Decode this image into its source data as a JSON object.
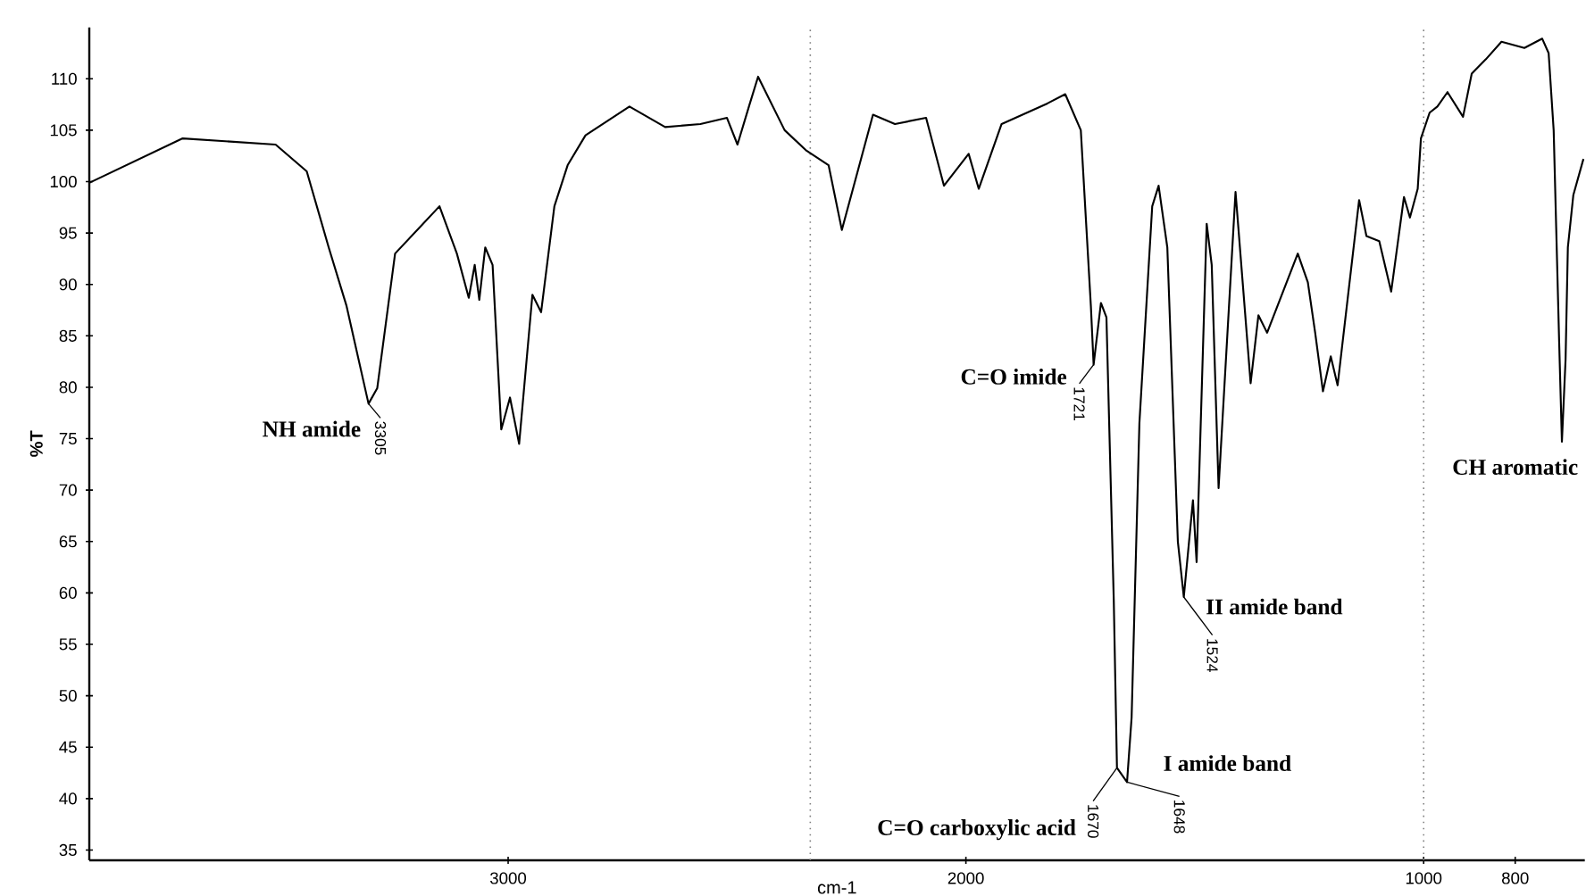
{
  "chart_data": {
    "type": "line",
    "xlabel": "cm-1",
    "ylabel": "%T",
    "color": "#000000",
    "x": [
      3914,
      3711,
      3508,
      3440,
      3392,
      3353,
      3305,
      3286,
      3247,
      3150,
      3112,
      3086,
      3073,
      3063,
      3050,
      3034,
      3015,
      2996,
      2976,
      2947,
      2928,
      2899,
      2870,
      2831,
      2735,
      2657,
      2580,
      2522,
      2499,
      2474,
      2454,
      2396,
      2348,
      2300,
      2271,
      2203,
      2155,
      2087,
      2048,
      1994,
      1972,
      1922,
      1822,
      1783,
      1749,
      1727,
      1721,
      1705,
      1693,
      1677,
      1670,
      1648,
      1638,
      1621,
      1593,
      1579,
      1560,
      1537,
      1524,
      1504,
      1496,
      1474,
      1463,
      1448,
      1411,
      1378,
      1361,
      1342,
      1275,
      1253,
      1237,
      1220,
      1203,
      1188,
      1141,
      1125,
      1097,
      1071,
      1043,
      1030,
      1013,
      1006,
      987,
      970,
      948,
      914,
      895,
      864,
      830,
      780,
      741,
      727,
      716,
      704,
      698,
      690,
      685,
      673,
      651
    ],
    "values": [
      99.9,
      104.2,
      103.6,
      101,
      93.6,
      87.9,
      78.4,
      79.9,
      93.0,
      97.6,
      93.0,
      88.7,
      91.9,
      88.5,
      93.6,
      91.9,
      75.9,
      79.0,
      74.5,
      89.0,
      87.3,
      97.6,
      101.6,
      104.5,
      107.3,
      105.3,
      105.6,
      106.2,
      103.6,
      107.3,
      110.2,
      105.0,
      103.0,
      101.6,
      95.3,
      106.5,
      105.6,
      106.2,
      99.6,
      102.7,
      99.3,
      105.6,
      107.6,
      108.5,
      105.0,
      87.9,
      82.2,
      88.2,
      86.8,
      59.3,
      43.0,
      41.6,
      47.9,
      76.5,
      97.6,
      99.6,
      93.6,
      65.0,
      59.6,
      69.0,
      63.0,
      95.9,
      91.9,
      70.2,
      99.0,
      80.4,
      87.0,
      85.3,
      93.0,
      90.2,
      85.3,
      79.6,
      83.0,
      80.2,
      98.2,
      94.7,
      94.2,
      89.3,
      98.5,
      96.5,
      99.3,
      104.2,
      106.7,
      107.3,
      108.7,
      106.3,
      110.5,
      111.9,
      113.6,
      113.0,
      113.9,
      112.5,
      105.0,
      84.4,
      74.7,
      82.7,
      93.6,
      98.7,
      102.2
    ],
    "xlim": [
      3915,
      648
    ],
    "ylim": [
      34,
      115
    ],
    "xticks": [
      3000,
      2000,
      1000,
      800
    ],
    "yticks": [
      35,
      40,
      45,
      50,
      55,
      60,
      65,
      70,
      75,
      80,
      85,
      90,
      95,
      100,
      105,
      110
    ],
    "ref_lines": [
      {
        "axis": "x",
        "value": 2340,
        "line_style": "dotted"
      },
      {
        "axis": "x",
        "value": 1000,
        "line_style": "dotted"
      }
    ],
    "annotations": [
      {
        "text": "NH amide",
        "x": 3305,
        "y": 78.4
      },
      {
        "text": "3305",
        "x": 3305,
        "y": 78.4
      },
      {
        "text": "C=O imide",
        "x": 1721,
        "y": 82.2
      },
      {
        "text": "1721",
        "x": 1721,
        "y": 82.2
      },
      {
        "text": "C=O carboxylic acid",
        "x": 1670,
        "y": 43.0
      },
      {
        "text": "1670",
        "x": 1670,
        "y": 43.0
      },
      {
        "text": "I amide band",
        "x": 1648,
        "y": 41.6
      },
      {
        "text": "1648",
        "x": 1648,
        "y": 41.6
      },
      {
        "text": "II amide band",
        "x": 1524,
        "y": 59.6
      },
      {
        "text": "1524",
        "x": 1524,
        "y": 59.6
      },
      {
        "text": "CH aromatic",
        "x": 698,
        "y": 74.7
      }
    ]
  }
}
